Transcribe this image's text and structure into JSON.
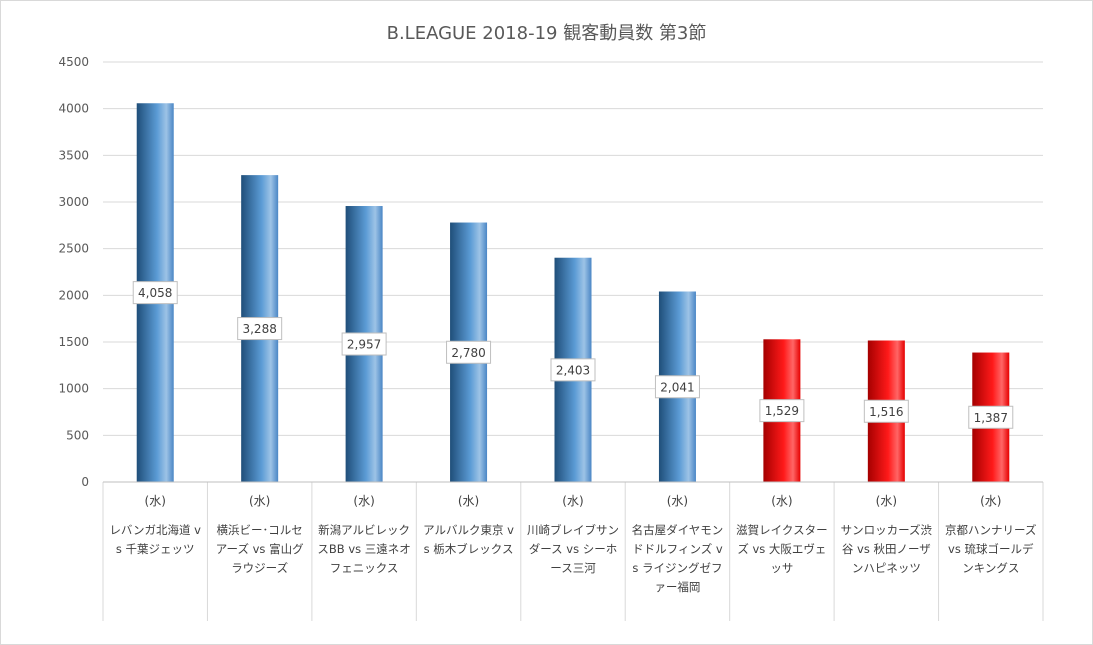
{
  "chart_data": {
    "type": "bar",
    "title": "B.LEAGUE 2018-19 観客動員数 第3節",
    "xlabel": "",
    "ylabel": "",
    "ylim": [
      0,
      4500
    ],
    "yticks": [
      0,
      500,
      1000,
      1500,
      2000,
      2500,
      3000,
      3500,
      4000,
      4500
    ],
    "grid": true,
    "legend": "none",
    "categories": [
      {
        "day": "(水)",
        "name": "レバンガ北海道 vs 千葉ジェッツ"
      },
      {
        "day": "(水)",
        "name": "横浜ビー･コルセアーズ vs 富山グラウジーズ"
      },
      {
        "day": "(水)",
        "name": "新潟アルビレックスBB vs 三遠ネオフェニックス"
      },
      {
        "day": "(水)",
        "name": "アルバルク東京 vs 栃木ブレックス"
      },
      {
        "day": "(水)",
        "name": "川崎ブレイブサンダース vs シーホース三河"
      },
      {
        "day": "(水)",
        "name": "名古屋ダイヤモンドドルフィンズ vs ライジングゼファー福岡"
      },
      {
        "day": "(水)",
        "name": "滋賀レイクスターズ vs 大阪エヴェッサ"
      },
      {
        "day": "(水)",
        "name": "サンロッカーズ渋谷 vs 秋田ノーザンハピネッツ"
      },
      {
        "day": "(水)",
        "name": "京都ハンナリーズ vs 琉球ゴールデンキングス"
      }
    ],
    "values": [
      4058,
      3288,
      2957,
      2780,
      2403,
      2041,
      1529,
      1516,
      1387
    ],
    "value_labels": [
      "4,058",
      "3,288",
      "2,957",
      "2,780",
      "2,403",
      "2,041",
      "1,529",
      "1,516",
      "1,387"
    ],
    "bar_colors": [
      "blue",
      "blue",
      "blue",
      "blue",
      "blue",
      "blue",
      "red",
      "red",
      "red"
    ],
    "colors": {
      "blue_dark": "#1f4e79",
      "blue_light": "#5b9bd5",
      "blue_mid": "#9dc3e6",
      "red_dark": "#a50000",
      "red_light": "#ff1a1a",
      "grid": "#d9d9d9",
      "axis_text": "#595959"
    }
  }
}
